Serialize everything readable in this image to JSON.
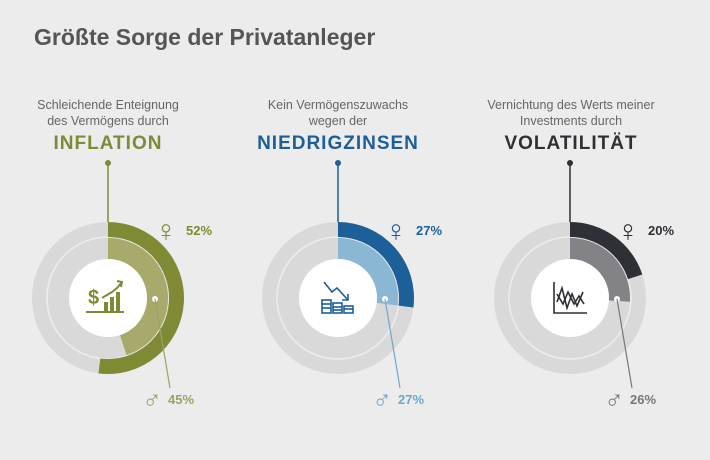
{
  "title": "Größte Sorge der Privatanleger",
  "chart_data": [
    {
      "type": "pie",
      "subtitle_lines": [
        "Schleichende Enteignung",
        "des Vermögens durch"
      ],
      "heading": "INFLATION",
      "icon": "dollar-growth-icon",
      "series": [
        {
          "symbol": "♀",
          "value": 52,
          "label": "52%"
        },
        {
          "symbol": "♂",
          "value": 45,
          "label": "45%"
        }
      ],
      "colors": {
        "outer": "#808a34",
        "inner": "#a7aa6a",
        "inner_label": "#9ca265"
      }
    },
    {
      "type": "pie",
      "subtitle_lines": [
        "Kein Vermögenszuwachs",
        "wegen der"
      ],
      "heading": "NIEDRIGZINSEN",
      "icon": "coins-decline-icon",
      "series": [
        {
          "symbol": "♀",
          "value": 27,
          "label": "27%"
        },
        {
          "symbol": "♂",
          "value": 27,
          "label": "27%"
        }
      ],
      "colors": {
        "outer": "#1d5f98",
        "inner": "#8ab7d3",
        "inner_label": "#6ea8c9"
      }
    },
    {
      "type": "pie",
      "subtitle_lines": [
        "Vernichtung des Werts meiner",
        "Investments durch"
      ],
      "heading": "VOLATILITÄT",
      "icon": "volatility-chart-icon",
      "series": [
        {
          "symbol": "♀",
          "value": 20,
          "label": "20%"
        },
        {
          "symbol": "♂",
          "value": 26,
          "label": "26%"
        }
      ],
      "colors": {
        "outer": "#2f3035",
        "inner": "#838387",
        "inner_label": "#77777b"
      }
    }
  ]
}
